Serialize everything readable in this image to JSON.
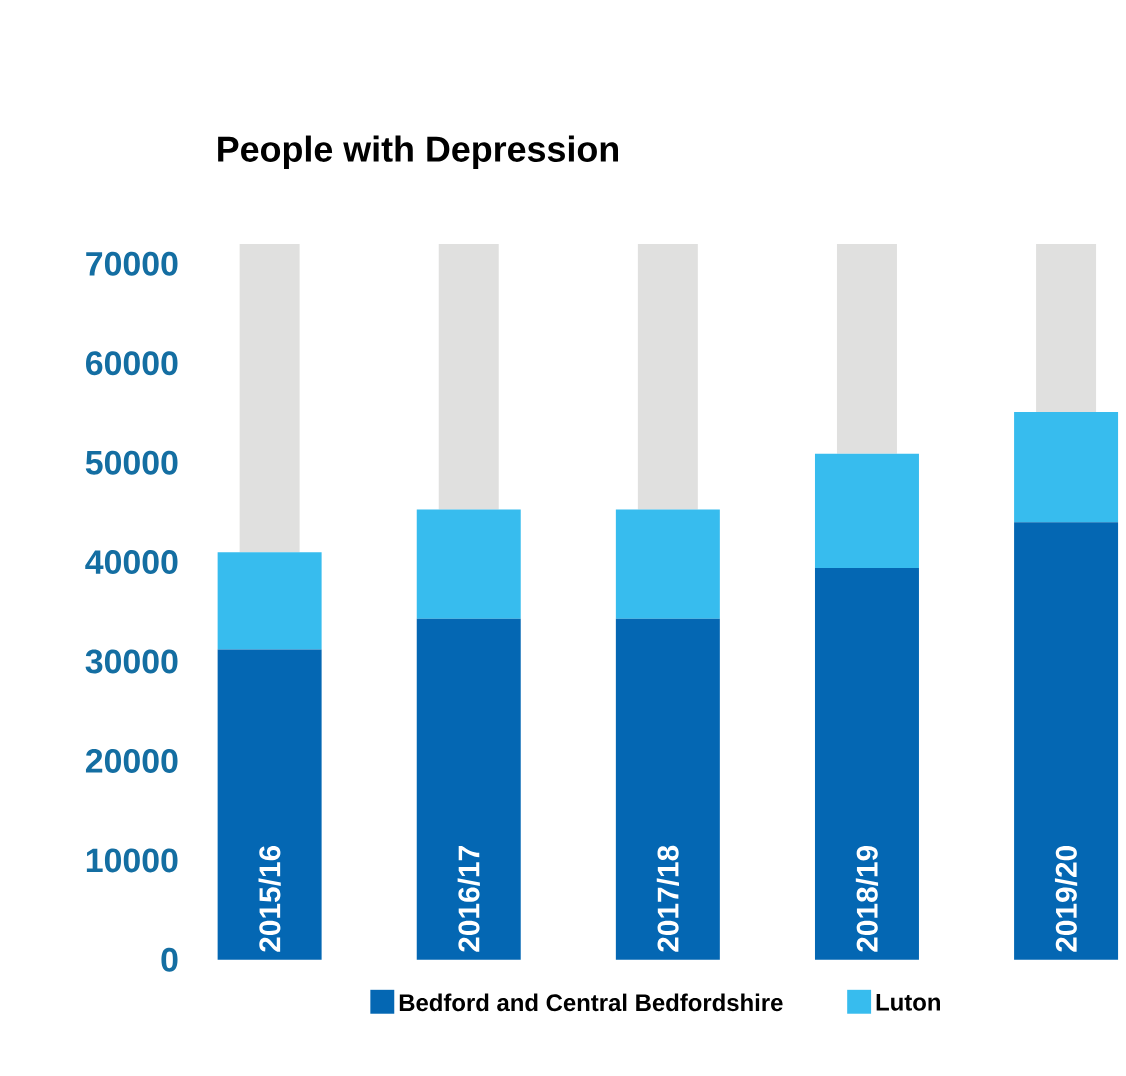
{
  "chart_data": {
    "type": "bar",
    "title": "People with Depression",
    "stacked": true,
    "categories": [
      "2015/16",
      "2016/17",
      "2017/18",
      "2018/19",
      "2019/20"
    ],
    "series": [
      {
        "name": "Bedford and Central Bedfordshire",
        "color": "#0467b3",
        "values": [
          31200,
          34300,
          34300,
          39400,
          44000
        ]
      },
      {
        "name": "Luton",
        "color": "#37bcee",
        "values": [
          9800,
          11000,
          11000,
          11500,
          11100
        ]
      },
      {
        "color": "#e0e0df",
        "values": [
          31000,
          26700,
          26700,
          21100,
          16900
        ]
      }
    ],
    "ylim": [
      0,
      73000
    ],
    "yticks": [
      0,
      10000,
      20000,
      30000,
      40000,
      50000,
      60000,
      70000
    ],
    "legend": "bottom"
  }
}
